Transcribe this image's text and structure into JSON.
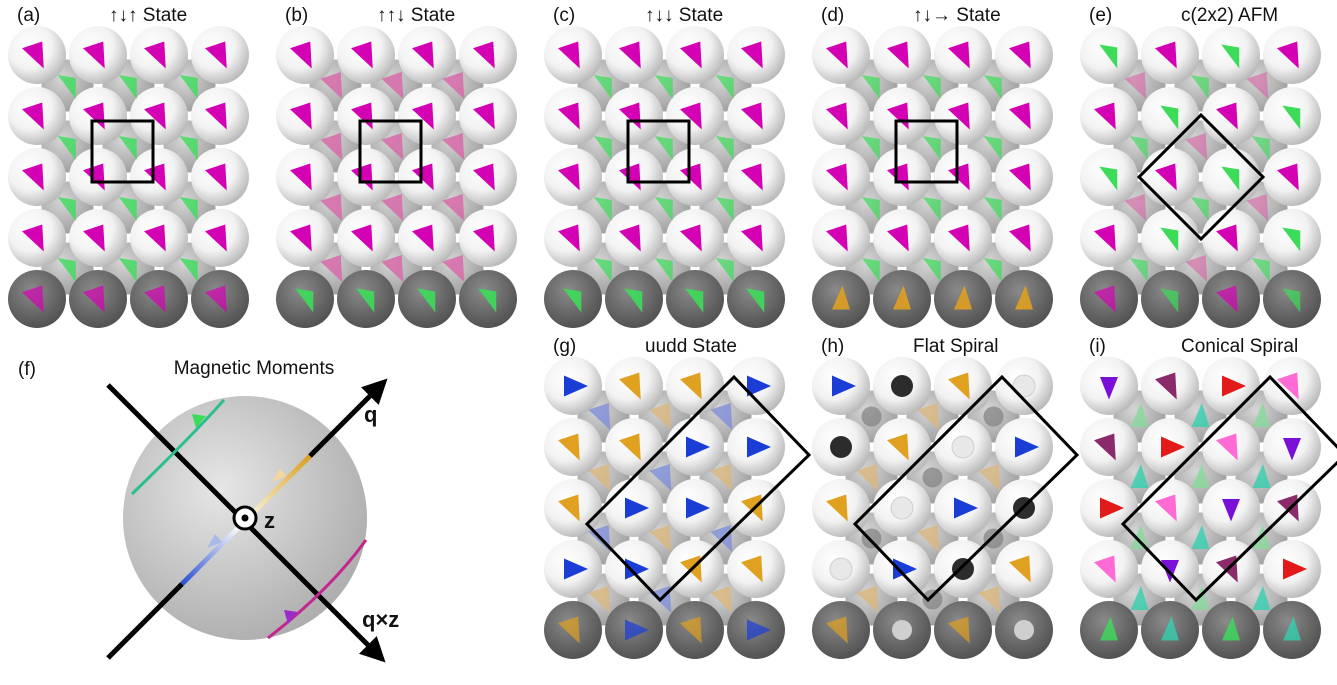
{
  "colors": {
    "magenta": "#d400b4",
    "pink": "#d66aa8",
    "green": "#3cdc5a",
    "paleGreen": "#86d99a",
    "orange": "#e0a020",
    "paleOrange": "#d9b67c",
    "blue": "#1a3dd6",
    "paleBlue": "#7f8fd8",
    "dark": "#2c2c2c",
    "red": "#e21a1a",
    "purple": "#7a10d8",
    "plum": "#8a2a6a",
    "lightPink": "#ff6ad5",
    "teal": "#35d0b0"
  },
  "panels": [
    {
      "letter": "(a)",
      "title": "↑↓↑ State",
      "box": "square",
      "pattern": "updownup"
    },
    {
      "letter": "(b)",
      "title": "↑↑↓ State",
      "box": "square",
      "pattern": "upupdown"
    },
    {
      "letter": "(c)",
      "title": "↑↓↓ State",
      "box": "square",
      "pattern": "updowndown"
    },
    {
      "letter": "(d)",
      "title": "↑↓→ State",
      "box": "square",
      "pattern": "updownright"
    },
    {
      "letter": "(e)",
      "title": "c(2x2) AFM",
      "box": "diamond",
      "pattern": "c2x2"
    },
    {
      "letter": "(g)",
      "title": "uudd State",
      "box": "rect",
      "pattern": "uudd"
    },
    {
      "letter": "(h)",
      "title": "Flat Spiral",
      "box": "rect",
      "pattern": "flat"
    },
    {
      "letter": "(i)",
      "title": "Conical Spiral",
      "box": "rect",
      "pattern": "conical"
    }
  ],
  "sphere_panel": {
    "letter": "(f)",
    "title": "Magnetic Moments",
    "axis_q": "q",
    "axis_z": "z",
    "axis_qxz": "q×z"
  }
}
